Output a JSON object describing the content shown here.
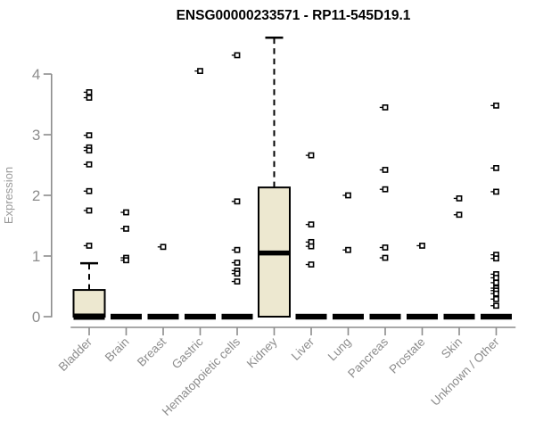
{
  "page": {
    "background": "#FFFFFF"
  },
  "chart_data": {
    "type": "boxplot",
    "title": "ENSG00000233571 - RP11-545D19.1",
    "ylabel": "Expression",
    "xlabel": "",
    "ylim": [
      0,
      4.65
    ],
    "yticks": [
      0,
      1,
      2,
      3,
      4
    ],
    "grid": false,
    "legend": false,
    "marker": "open-square",
    "whisker_style": "dashed",
    "colors": {
      "box_fill": "#EDE8D0",
      "box_border": "#000000",
      "median": "#000000",
      "whisker": "#000000",
      "outlier": "#000000",
      "outlier_fill": "#FFFFFF",
      "axis": "#8C8C8C",
      "tick_label": "#8C8C8C",
      "x_label": "#8C8C8C",
      "ylabel_color": "#9A9A9A",
      "title": "#000000"
    },
    "categories": [
      "Bladder",
      "Brain",
      "Breast",
      "Gastric",
      "Hematopoietic cells",
      "Kidney",
      "Liver",
      "Lung",
      "Pancreas",
      "Prostate",
      "Skin",
      "Unknown / Other"
    ],
    "boxes": [
      {
        "category": "Bladder",
        "q1": 0,
        "median": 0,
        "q3": 0.44,
        "whisker_low": 0,
        "whisker_high": 0.88,
        "outliers": [
          3.7,
          3.61,
          2.99,
          2.79,
          2.74,
          2.51,
          2.07,
          1.75,
          1.17
        ]
      },
      {
        "category": "Brain",
        "q1": 0,
        "median": 0,
        "q3": 0,
        "whisker_low": 0,
        "whisker_high": 0,
        "outliers": [
          1.72,
          1.45,
          0.97,
          0.93
        ]
      },
      {
        "category": "Breast",
        "q1": 0,
        "median": 0,
        "q3": 0,
        "whisker_low": 0,
        "whisker_high": 0,
        "outliers": [
          1.15
        ]
      },
      {
        "category": "Gastric",
        "q1": 0,
        "median": 0,
        "q3": 0,
        "whisker_low": 0,
        "whisker_high": 0,
        "outliers": [
          4.05
        ]
      },
      {
        "category": "Hematopoietic cells",
        "q1": 0,
        "median": 0,
        "q3": 0,
        "whisker_low": 0,
        "whisker_high": 0,
        "outliers": [
          4.31,
          1.9,
          1.1,
          0.89,
          0.76,
          0.71,
          0.58
        ]
      },
      {
        "category": "Kidney",
        "q1": 0,
        "median": 1.05,
        "q3": 2.13,
        "whisker_low": 0,
        "whisker_high": 4.6,
        "outliers": []
      },
      {
        "category": "Liver",
        "q1": 0,
        "median": 0,
        "q3": 0,
        "whisker_low": 0,
        "whisker_high": 0,
        "outliers": [
          2.66,
          1.52,
          1.23,
          1.16,
          0.86
        ]
      },
      {
        "category": "Lung",
        "q1": 0,
        "median": 0,
        "q3": 0,
        "whisker_low": 0,
        "whisker_high": 0,
        "outliers": [
          2.0,
          1.1
        ]
      },
      {
        "category": "Pancreas",
        "q1": 0,
        "median": 0,
        "q3": 0,
        "whisker_low": 0,
        "whisker_high": 0,
        "outliers": [
          3.45,
          2.42,
          2.1,
          1.14,
          0.97
        ]
      },
      {
        "category": "Prostate",
        "q1": 0,
        "median": 0,
        "q3": 0,
        "whisker_low": 0,
        "whisker_high": 0,
        "outliers": [
          1.17
        ]
      },
      {
        "category": "Skin",
        "q1": 0,
        "median": 0,
        "q3": 0,
        "whisker_low": 0,
        "whisker_high": 0,
        "outliers": [
          1.95,
          1.68
        ]
      },
      {
        "category": "Unknown / Other",
        "q1": 0,
        "median": 0,
        "q3": 0,
        "whisker_low": 0,
        "whisker_high": 0,
        "outliers": [
          3.48,
          2.45,
          2.06,
          1.02,
          0.96,
          0.7,
          0.64,
          0.56,
          0.47,
          0.43,
          0.38,
          0.29,
          0.18
        ]
      }
    ]
  }
}
